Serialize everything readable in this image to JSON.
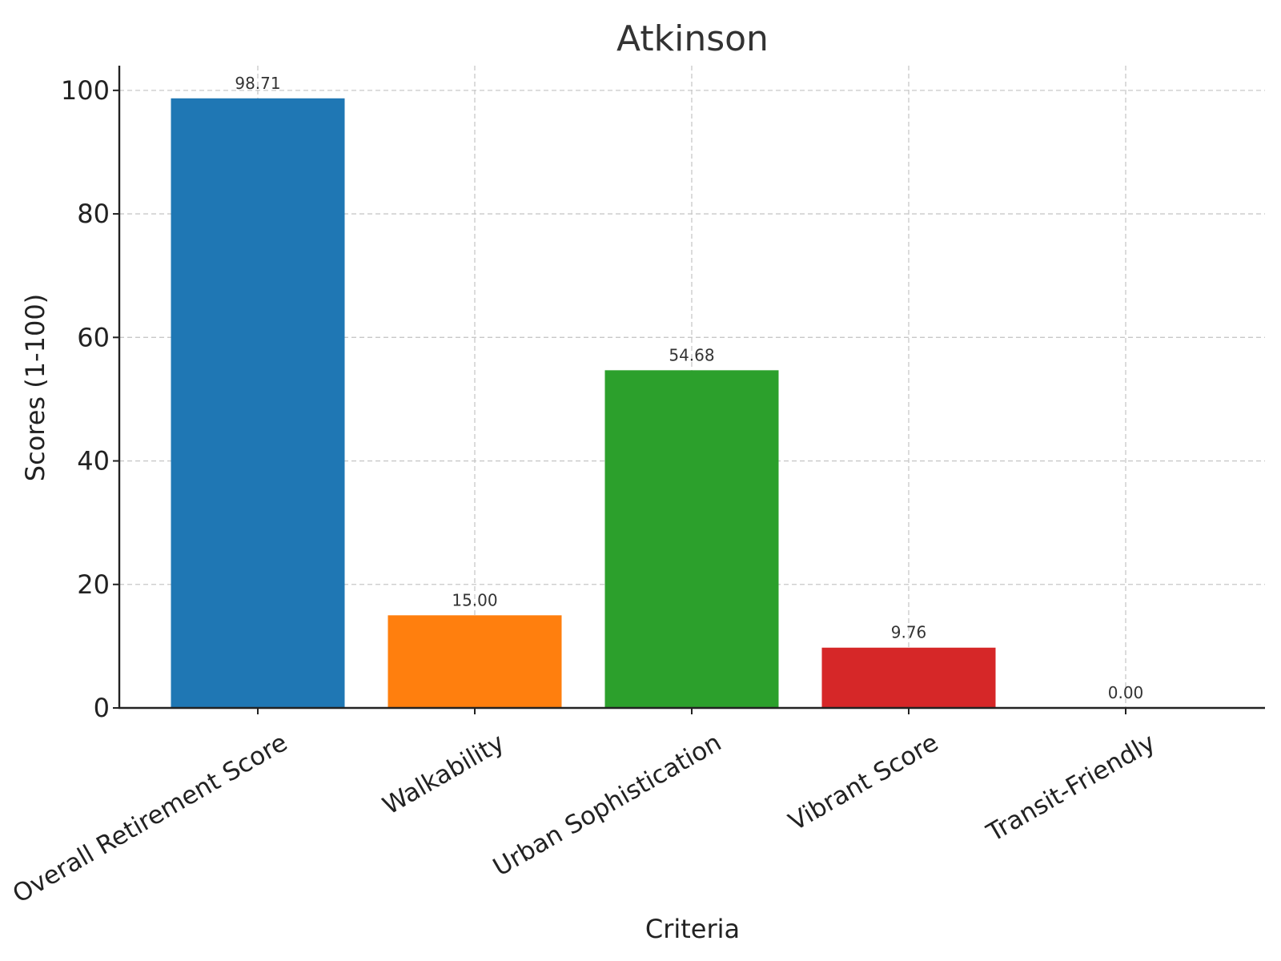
{
  "chart_data": {
    "type": "bar",
    "title": "Atkinson",
    "xlabel": "Criteria",
    "ylabel": "Scores (1-100)",
    "categories": [
      "Overall Retirement Score",
      "Walkability",
      "Urban Sophistication",
      "Vibrant Score",
      "Transit-Friendly"
    ],
    "values": [
      98.71,
      15.0,
      54.68,
      9.76,
      0.0
    ],
    "value_labels": [
      "98.71",
      "15.00",
      "54.68",
      "9.76",
      "0.00"
    ],
    "colors": [
      "#1f77b4",
      "#ff7f0e",
      "#2ca02c",
      "#d62728",
      "#9467bd"
    ],
    "ylim": [
      0,
      104
    ],
    "yticks": [
      0,
      20,
      40,
      60,
      80,
      100
    ],
    "ytick_labels": [
      "0",
      "20",
      "40",
      "60",
      "80",
      "100"
    ],
    "grid": true,
    "legend": "none"
  }
}
